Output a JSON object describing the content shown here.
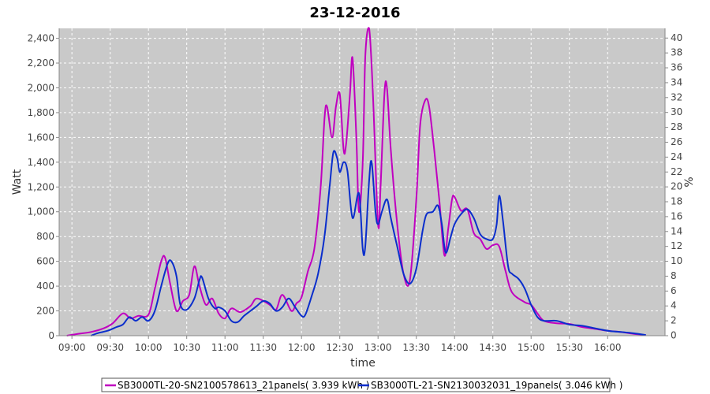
{
  "chart_data": {
    "type": "line",
    "title": "23-12-2016",
    "xlabel": "time",
    "ylabel": "Watt",
    "y2label": "%",
    "ylim": [
      0,
      2480
    ],
    "y2lim": [
      0,
      41.3
    ],
    "xlim": [
      "08:50",
      "16:45"
    ],
    "x_ticks": [
      "09:00",
      "09:30",
      "10:00",
      "10:30",
      "11:00",
      "11:30",
      "12:00",
      "12:30",
      "13:00",
      "13:30",
      "14:00",
      "14:30",
      "15:00",
      "15:30",
      "16:00"
    ],
    "y_ticks": [
      "0",
      "200",
      "400",
      "600",
      "800",
      "1,000",
      "1,200",
      "1,400",
      "1,600",
      "1,800",
      "2,000",
      "2,200",
      "2,400"
    ],
    "y2_ticks": [
      "0",
      "2",
      "4",
      "6",
      "8",
      "10",
      "12",
      "14",
      "16",
      "18",
      "20",
      "22",
      "24",
      "26",
      "28",
      "30",
      "32",
      "34",
      "36",
      "38",
      "40"
    ],
    "grid": true,
    "legend_position": "bottom",
    "colors": {
      "plot_bg": "#c9c9c9",
      "grid": "#ffffff",
      "series1": "#c000c0",
      "series2": "#0a2ecc"
    },
    "series": [
      {
        "name": "SB3000TL-20-SN2100578613_21panels( 3.939 kWh )",
        "points": [
          [
            "08:56",
            0
          ],
          [
            "09:05",
            15
          ],
          [
            "09:15",
            30
          ],
          [
            "09:25",
            60
          ],
          [
            "09:32",
            100
          ],
          [
            "09:40",
            180
          ],
          [
            "09:46",
            140
          ],
          [
            "09:52",
            160
          ],
          [
            "10:00",
            170
          ],
          [
            "10:05",
            380
          ],
          [
            "10:10",
            600
          ],
          [
            "10:13",
            630
          ],
          [
            "10:17",
            420
          ],
          [
            "10:22",
            200
          ],
          [
            "10:27",
            280
          ],
          [
            "10:32",
            330
          ],
          [
            "10:36",
            560
          ],
          [
            "10:40",
            400
          ],
          [
            "10:45",
            250
          ],
          [
            "10:50",
            300
          ],
          [
            "10:55",
            180
          ],
          [
            "11:00",
            140
          ],
          [
            "11:05",
            220
          ],
          [
            "11:12",
            190
          ],
          [
            "11:20",
            240
          ],
          [
            "11:25",
            300
          ],
          [
            "11:35",
            250
          ],
          [
            "11:40",
            210
          ],
          [
            "11:45",
            330
          ],
          [
            "11:52",
            200
          ],
          [
            "11:56",
            260
          ],
          [
            "12:00",
            310
          ],
          [
            "12:05",
            520
          ],
          [
            "12:10",
            700
          ],
          [
            "12:15",
            1200
          ],
          [
            "12:18",
            1750
          ],
          [
            "12:20",
            1850
          ],
          [
            "12:24",
            1600
          ],
          [
            "12:27",
            1850
          ],
          [
            "12:30",
            1950
          ],
          [
            "12:33",
            1500
          ],
          [
            "12:35",
            1550
          ],
          [
            "12:38",
            1950
          ],
          [
            "12:40",
            2240
          ],
          [
            "12:43",
            1600
          ],
          [
            "12:45",
            1000
          ],
          [
            "12:48",
            1400
          ],
          [
            "12:50",
            2250
          ],
          [
            "12:53",
            2480
          ],
          [
            "12:56",
            1950
          ],
          [
            "13:00",
            900
          ],
          [
            "13:02",
            1200
          ],
          [
            "13:05",
            1950
          ],
          [
            "13:07",
            2000
          ],
          [
            "13:10",
            1500
          ],
          [
            "13:15",
            900
          ],
          [
            "13:20",
            500
          ],
          [
            "13:25",
            450
          ],
          [
            "13:30",
            1100
          ],
          [
            "13:33",
            1700
          ],
          [
            "13:37",
            1900
          ],
          [
            "13:40",
            1850
          ],
          [
            "13:44",
            1500
          ],
          [
            "13:48",
            1100
          ],
          [
            "13:52",
            650
          ],
          [
            "13:55",
            860
          ],
          [
            "13:58",
            1100
          ],
          [
            "14:00",
            1120
          ],
          [
            "14:05",
            1010
          ],
          [
            "14:10",
            1020
          ],
          [
            "14:15",
            830
          ],
          [
            "14:20",
            780
          ],
          [
            "14:25",
            700
          ],
          [
            "14:30",
            730
          ],
          [
            "14:35",
            720
          ],
          [
            "14:40",
            520
          ],
          [
            "14:45",
            350
          ],
          [
            "14:55",
            270
          ],
          [
            "15:00",
            250
          ],
          [
            "15:05",
            180
          ],
          [
            "15:10",
            120
          ],
          [
            "15:20",
            100
          ],
          [
            "15:30",
            95
          ],
          [
            "15:40",
            70
          ],
          [
            "15:50",
            55
          ],
          [
            "16:00",
            40
          ],
          [
            "16:10",
            30
          ],
          [
            "16:20",
            15
          ],
          [
            "16:25",
            10
          ],
          [
            "16:30",
            5
          ]
        ]
      },
      {
        "name": "SB3000TL-21-SN2130032031_19panels( 3.046 kWh )",
        "points": [
          [
            "09:15",
            0
          ],
          [
            "09:20",
            20
          ],
          [
            "09:28",
            40
          ],
          [
            "09:35",
            70
          ],
          [
            "09:40",
            90
          ],
          [
            "09:45",
            150
          ],
          [
            "09:50",
            120
          ],
          [
            "09:55",
            150
          ],
          [
            "10:00",
            120
          ],
          [
            "10:05",
            200
          ],
          [
            "10:10",
            400
          ],
          [
            "10:15",
            580
          ],
          [
            "10:18",
            600
          ],
          [
            "10:22",
            480
          ],
          [
            "10:25",
            250
          ],
          [
            "10:30",
            210
          ],
          [
            "10:36",
            300
          ],
          [
            "10:40",
            450
          ],
          [
            "10:42",
            470
          ],
          [
            "10:47",
            300
          ],
          [
            "10:52",
            220
          ],
          [
            "10:55",
            230
          ],
          [
            "11:00",
            200
          ],
          [
            "11:05",
            120
          ],
          [
            "11:10",
            110
          ],
          [
            "11:15",
            160
          ],
          [
            "11:20",
            200
          ],
          [
            "11:25",
            240
          ],
          [
            "11:30",
            280
          ],
          [
            "11:35",
            260
          ],
          [
            "11:40",
            200
          ],
          [
            "11:45",
            230
          ],
          [
            "11:50",
            300
          ],
          [
            "11:55",
            230
          ],
          [
            "12:00",
            160
          ],
          [
            "12:03",
            170
          ],
          [
            "12:08",
            320
          ],
          [
            "12:13",
            500
          ],
          [
            "12:18",
            800
          ],
          [
            "12:22",
            1200
          ],
          [
            "12:25",
            1480
          ],
          [
            "12:28",
            1430
          ],
          [
            "12:30",
            1320
          ],
          [
            "12:33",
            1400
          ],
          [
            "12:36",
            1330
          ],
          [
            "12:40",
            950
          ],
          [
            "12:45",
            1150
          ],
          [
            "12:48",
            700
          ],
          [
            "12:50",
            720
          ],
          [
            "12:53",
            1250
          ],
          [
            "12:55",
            1400
          ],
          [
            "12:58",
            1000
          ],
          [
            "13:00",
            900
          ],
          [
            "13:03",
            1000
          ],
          [
            "13:07",
            1100
          ],
          [
            "13:10",
            950
          ],
          [
            "13:15",
            720
          ],
          [
            "13:20",
            500
          ],
          [
            "13:25",
            420
          ],
          [
            "13:30",
            540
          ],
          [
            "13:35",
            850
          ],
          [
            "13:38",
            980
          ],
          [
            "13:43",
            1000
          ],
          [
            "13:47",
            1050
          ],
          [
            "13:50",
            900
          ],
          [
            "13:53",
            670
          ],
          [
            "13:57",
            800
          ],
          [
            "14:00",
            900
          ],
          [
            "14:05",
            980
          ],
          [
            "14:10",
            1020
          ],
          [
            "14:15",
            950
          ],
          [
            "14:20",
            820
          ],
          [
            "14:25",
            780
          ],
          [
            "14:30",
            780
          ],
          [
            "14:33",
            900
          ],
          [
            "14:35",
            1130
          ],
          [
            "14:38",
            920
          ],
          [
            "14:42",
            560
          ],
          [
            "14:45",
            500
          ],
          [
            "14:50",
            460
          ],
          [
            "14:55",
            380
          ],
          [
            "15:00",
            250
          ],
          [
            "15:05",
            150
          ],
          [
            "15:10",
            120
          ],
          [
            "15:20",
            120
          ],
          [
            "15:30",
            90
          ],
          [
            "15:40",
            80
          ],
          [
            "15:50",
            60
          ],
          [
            "16:00",
            40
          ],
          [
            "16:10",
            30
          ],
          [
            "16:20",
            20
          ],
          [
            "16:30",
            5
          ]
        ]
      }
    ]
  }
}
